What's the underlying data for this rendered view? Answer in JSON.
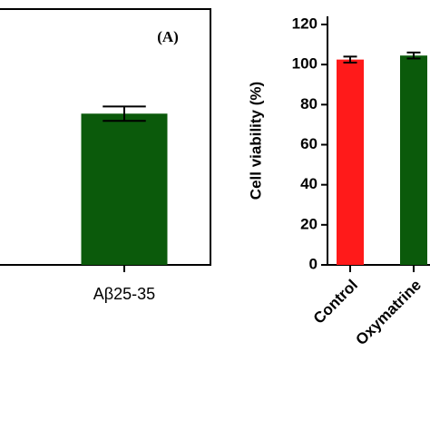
{
  "chart_data": [
    {
      "type": "bar",
      "panel_label": "(A)",
      "categories": [
        "Aβ25-35"
      ],
      "values": [
        75.5
      ],
      "errors": [
        3.6
      ],
      "colors": [
        "#0b5a0b"
      ],
      "ylim": [
        0,
        120
      ]
    },
    {
      "type": "bar",
      "y_label": "Cell viability (%)",
      "categories": [
        "Control",
        "Oxymatrine"
      ],
      "values": [
        102.5,
        104.5
      ],
      "errors": [
        1.5,
        1.5
      ],
      "colors": [
        "#ff1a1a",
        "#0b5a0b"
      ],
      "ylim": [
        0,
        120
      ],
      "yticks": [
        0,
        20,
        40,
        60,
        80,
        100,
        120
      ]
    }
  ]
}
